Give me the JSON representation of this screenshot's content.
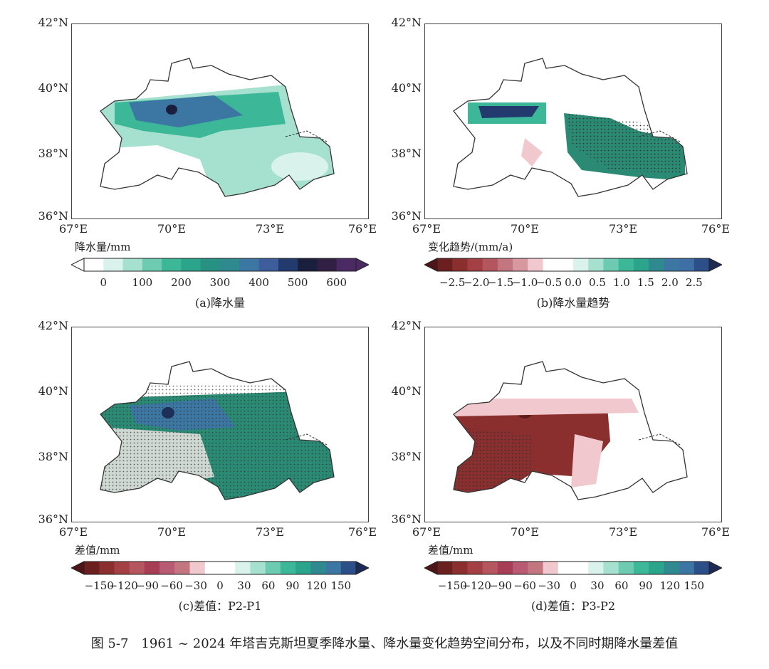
{
  "axes": {
    "lat_labels": [
      "42°N",
      "40°N",
      "38°N",
      "36°N"
    ],
    "lon_labels": [
      "67°E",
      "70°E",
      "73°E",
      "76°E"
    ]
  },
  "panels": [
    {
      "id": "a",
      "colorbar_title": "降水量/mm",
      "ticks": [
        "0",
        "100",
        "200",
        "300",
        "400",
        "500",
        "600"
      ],
      "colors": [
        "#ffffff",
        "#daf2ec",
        "#a6e0cf",
        "#6ccbb0",
        "#3cb898",
        "#2aa48b",
        "#279183",
        "#2f8a8f",
        "#3c77a3",
        "#3e5d9c",
        "#233a6e",
        "#1a1f3d",
        "#322044",
        "#4b2a63"
      ],
      "left_arrow": "#ffffff",
      "right_arrow": "#4b2a63",
      "caption": "(a)降水量"
    },
    {
      "id": "b",
      "colorbar_title": "变化趋势/(mm/a)",
      "ticks": [
        "−2.5",
        "−2.0",
        "−1.5",
        "−1.0",
        "−0.5",
        "0.0",
        "0.5",
        "1.0",
        "1.5",
        "2.0",
        "2.5"
      ],
      "colors": [
        "#6b1f1f",
        "#8a2e2e",
        "#a33f45",
        "#b5565e",
        "#c47680",
        "#d898a0",
        "#f1c8cd",
        "#ffffff",
        "#ffffff",
        "#daf2ec",
        "#a6e0cf",
        "#6ccbb0",
        "#3cb898",
        "#2aa48b",
        "#2f8a8f",
        "#3c77a3",
        "#3e6fa5",
        "#2c4f8a"
      ],
      "left_arrow": "#4f1416",
      "right_arrow": "#1c2a55",
      "caption": "(b)降水量趋势"
    },
    {
      "id": "c",
      "colorbar_title": "差值/mm",
      "ticks": [
        "−150",
        "−120",
        "−90",
        "−60",
        "−30",
        "0",
        "30",
        "60",
        "90",
        "120",
        "150"
      ],
      "colors": [
        "#6b1f1f",
        "#8a2e2e",
        "#a33f45",
        "#b5565e",
        "#a83e55",
        "#b75a72",
        "#c47680",
        "#f1c8cd",
        "#ffffff",
        "#ffffff",
        "#daf2ec",
        "#a6e0cf",
        "#6ccbb0",
        "#3cb898",
        "#2aa48b",
        "#2f8a8f",
        "#3c77a3",
        "#2c4f8a"
      ],
      "left_arrow": "#4f1416",
      "right_arrow": "#1c2a55",
      "caption": "(c)差值：P2-P1"
    },
    {
      "id": "d",
      "colorbar_title": "差值/mm",
      "ticks": [
        "−150",
        "−120",
        "−90",
        "−60",
        "−30",
        "0",
        "30",
        "60",
        "90",
        "120",
        "150"
      ],
      "colors": [
        "#6b1f1f",
        "#8a2e2e",
        "#a33f45",
        "#b5565e",
        "#a83e55",
        "#b75a72",
        "#c47680",
        "#f1c8cd",
        "#ffffff",
        "#ffffff",
        "#daf2ec",
        "#a6e0cf",
        "#6ccbb0",
        "#3cb898",
        "#2aa48b",
        "#2f8a8f",
        "#3c77a3",
        "#2c4f8a"
      ],
      "left_arrow": "#4f1416",
      "right_arrow": "#1c2a55",
      "caption": "(d)差值：P3-P2"
    }
  ],
  "figure_caption": "图 5-7　1961 ~ 2024 年塔吉克斯坦夏季降水量、降水量变化趋势空间分布，以及不同时期降水量差值"
}
